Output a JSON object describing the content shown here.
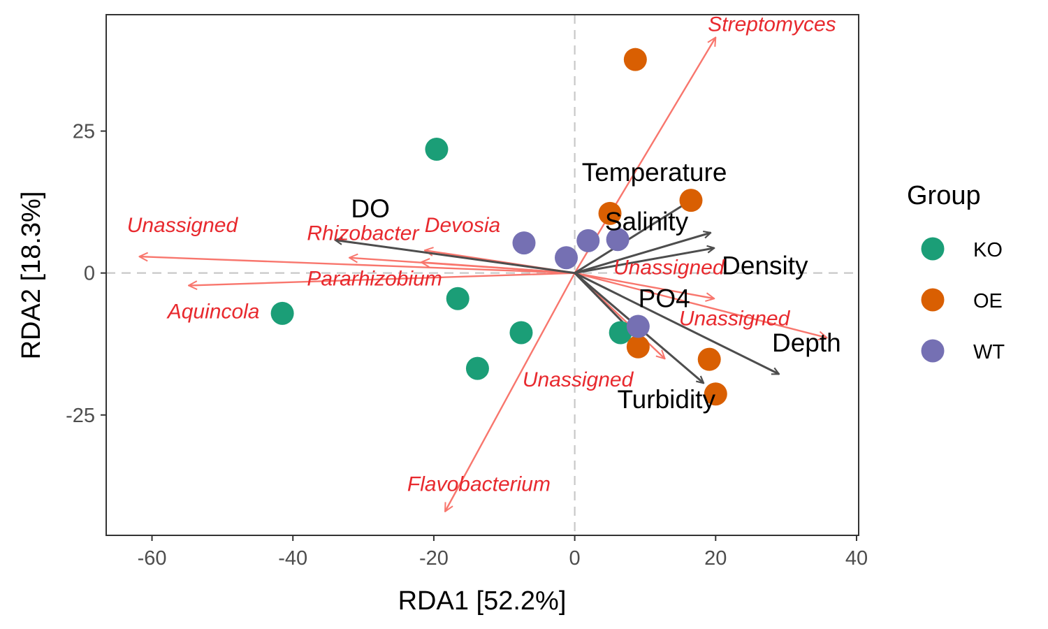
{
  "chart_data": {
    "type": "scatter",
    "xlabel": "RDA1 [52.2%]",
    "ylabel": "RDA2 [18.3%]",
    "xlim": [
      -66.5,
      40.3
    ],
    "ylim": [
      -46.2,
      45.5
    ],
    "x_ticks": [
      -60,
      -40,
      -20,
      0,
      20,
      40
    ],
    "y_ticks": [
      -25,
      0,
      25
    ],
    "x_tick_labels": [
      "-60",
      "-40",
      "-20",
      "0",
      "20",
      "40"
    ],
    "y_tick_labels": [
      "-25",
      "0",
      "25"
    ],
    "grid": false,
    "reference_lines": {
      "x": 0,
      "y": 0,
      "style": "dashed",
      "color": "#cccccc"
    },
    "legend": {
      "title": "Group",
      "position": "right",
      "entries": [
        {
          "name": "KO",
          "color": "#1B9E77"
        },
        {
          "name": "OE",
          "color": "#D95F02"
        },
        {
          "name": "WT",
          "color": "#7570B3"
        }
      ]
    },
    "series": [
      {
        "name": "KO",
        "color": "#1B9E77",
        "points": [
          {
            "x": -19.6,
            "y": 21.8
          },
          {
            "x": -41.5,
            "y": -7.1
          },
          {
            "x": -16.6,
            "y": -4.5
          },
          {
            "x": -7.6,
            "y": -10.5
          },
          {
            "x": -13.8,
            "y": -16.8
          },
          {
            "x": 6.5,
            "y": -10.5
          }
        ]
      },
      {
        "name": "OE",
        "color": "#D95F02",
        "points": [
          {
            "x": 8.6,
            "y": 37.6
          },
          {
            "x": 16.5,
            "y": 12.8
          },
          {
            "x": 5.0,
            "y": 10.5
          },
          {
            "x": 9.0,
            "y": -13.0
          },
          {
            "x": 19.1,
            "y": -15.2
          },
          {
            "x": 20.0,
            "y": -21.3
          }
        ]
      },
      {
        "name": "WT",
        "color": "#7570B3",
        "points": [
          {
            "x": -7.2,
            "y": 5.3
          },
          {
            "x": -1.2,
            "y": 2.7
          },
          {
            "x": 1.9,
            "y": 5.7
          },
          {
            "x": 6.1,
            "y": 5.9
          },
          {
            "x": 9.0,
            "y": -9.4
          }
        ]
      }
    ],
    "env_arrows": {
      "color": "#4d4d4d",
      "items": [
        {
          "label": "DO",
          "x": -34.0,
          "y": 5.8,
          "label_x": -29.0,
          "label_y": 9.8,
          "anchor": "middle"
        },
        {
          "label": "Temperature",
          "x": 16.5,
          "y": 12.8,
          "label_x": 11.3,
          "label_y": 16.2,
          "anchor": "middle"
        },
        {
          "label": "Salinity",
          "x": 19.3,
          "y": 7.1,
          "label_x": 10.2,
          "label_y": 7.5,
          "anchor": "middle"
        },
        {
          "label": "Density",
          "x": 19.8,
          "y": 4.4,
          "label_x": 27.0,
          "label_y": -0.2,
          "anchor": "middle"
        },
        {
          "label": "PO4",
          "x": 8.2,
          "y": -10.4,
          "label_x": 12.7,
          "label_y": -6.0,
          "anchor": "middle"
        },
        {
          "label": "Turbidity",
          "x": 18.3,
          "y": -19.4,
          "label_x": 13.0,
          "label_y": -23.8,
          "anchor": "middle"
        },
        {
          "label": "Depth",
          "x": 29.0,
          "y": -17.8,
          "label_x": 32.9,
          "label_y": -13.8,
          "anchor": "middle"
        }
      ]
    },
    "taxa_arrows": {
      "color": "#F8766D",
      "label_color": "#E8292E",
      "items": [
        {
          "label": "Streptomyces",
          "x": 20.0,
          "y": 41.5,
          "label_x": 28.0,
          "label_y": 42.6,
          "anchor": "middle"
        },
        {
          "label": "Unassigned",
          "x": -61.8,
          "y": 2.9,
          "label_x": -55.7,
          "label_y": 7.2,
          "anchor": "middle"
        },
        {
          "label": "Rhizobacter",
          "x": -32.0,
          "y": 2.7,
          "label_x": -38.0,
          "label_y": 5.8,
          "anchor": "start"
        },
        {
          "label": "Devosia",
          "x": -21.3,
          "y": 4.0,
          "label_x": -21.3,
          "label_y": 7.2,
          "anchor": "start"
        },
        {
          "label": "Pararhizobium",
          "x": -21.8,
          "y": 1.9,
          "label_x": -38.0,
          "label_y": -2.2,
          "anchor": "start"
        },
        {
          "label": "Aquincola",
          "x": -54.8,
          "y": -2.2,
          "label_x": -57.8,
          "label_y": -8.0,
          "anchor": "start"
        },
        {
          "label": "Unassigned",
          "x": 19.8,
          "y": -4.5,
          "label_x": 5.5,
          "label_y": -0.2,
          "anchor": "start"
        },
        {
          "label": "Unassigned",
          "x": 35.8,
          "y": -11.4,
          "label_x": 14.8,
          "label_y": -9.2,
          "anchor": "start"
        },
        {
          "label": "Unassigned",
          "x": 12.8,
          "y": -15.1,
          "label_x": 8.3,
          "label_y": -20.0,
          "anchor": "end"
        },
        {
          "label": "Flavobacterium",
          "x": -18.4,
          "y": -42.0,
          "label_x": -13.6,
          "label_y": -38.4,
          "anchor": "middle"
        }
      ]
    }
  }
}
